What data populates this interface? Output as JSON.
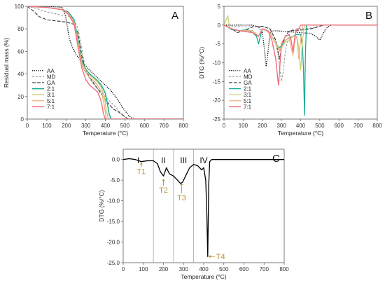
{
  "chart_data": [
    {
      "type": "line",
      "panel_label": "A",
      "xlabel": "Temperature (°C)",
      "ylabel": "Residual mass (%)",
      "xlim": [
        0,
        800
      ],
      "ylim": [
        0,
        100
      ],
      "xticks": [
        "0",
        "100",
        "200",
        "300",
        "400",
        "500",
        "600",
        "700",
        "800"
      ],
      "yticks": [
        "0",
        "20",
        "40",
        "60",
        "80",
        "100"
      ],
      "grid": false,
      "legend_position": "bottom-left",
      "series": [
        {
          "name": "AA",
          "color": "#000000",
          "dash": "1.2,1.6",
          "width": 1.3,
          "x": [
            0,
            100,
            180,
            195,
            205,
            215,
            230,
            250,
            280,
            310,
            340,
            370,
            400,
            430,
            460,
            490,
            520,
            540,
            560,
            800
          ],
          "y": [
            100,
            100,
            99,
            92,
            82,
            72,
            64,
            57,
            51,
            45,
            40,
            35,
            30,
            25,
            18,
            10,
            3,
            0.5,
            0,
            0
          ]
        },
        {
          "name": "MD",
          "color": "#9a9a9a",
          "dash": "3,2",
          "width": 1.1,
          "x": [
            0,
            50,
            100,
            180,
            220,
            240,
            260,
            280,
            300,
            330,
            360,
            400,
            440,
            470,
            500,
            520,
            800
          ],
          "y": [
            100,
            98,
            95,
            92,
            91,
            88,
            80,
            62,
            42,
            33,
            27,
            20,
            13,
            7,
            2,
            0,
            0
          ]
        },
        {
          "name": "GA",
          "color": "#3a3a3a",
          "dash": "5,2",
          "width": 1.1,
          "x": [
            0,
            30,
            60,
            100,
            150,
            200,
            240,
            260,
            280,
            300,
            320,
            340,
            360,
            380,
            400,
            420,
            440,
            470,
            500,
            520,
            800
          ],
          "y": [
            100,
            96,
            91,
            88,
            87,
            86,
            84,
            76,
            56,
            43,
            37,
            32,
            27,
            22,
            17,
            13,
            9,
            6,
            2,
            0,
            0
          ]
        },
        {
          "name": "2:1",
          "color": "#1aaa94",
          "dash": "",
          "width": 1.5,
          "x": [
            0,
            100,
            180,
            210,
            240,
            260,
            280,
            300,
            320,
            340,
            360,
            380,
            400,
            410,
            420,
            430,
            800
          ],
          "y": [
            100,
            99,
            97,
            95,
            88,
            70,
            52,
            44,
            40,
            37,
            34,
            30,
            23,
            14,
            4,
            0,
            0
          ]
        },
        {
          "name": "3:1",
          "color": "#c4cc6a",
          "dash": "",
          "width": 1.3,
          "x": [
            0,
            100,
            180,
            210,
            240,
            260,
            280,
            300,
            320,
            340,
            360,
            380,
            395,
            405,
            415,
            800
          ],
          "y": [
            100,
            99,
            97,
            94,
            86,
            68,
            50,
            43,
            39,
            36,
            33,
            28,
            20,
            8,
            0,
            0
          ]
        },
        {
          "name": "5:1",
          "color": "#f0b080",
          "dash": "",
          "width": 1.3,
          "x": [
            0,
            100,
            180,
            210,
            240,
            260,
            280,
            300,
            320,
            340,
            360,
            380,
            395,
            405,
            800
          ],
          "y": [
            100,
            99,
            97,
            94,
            85,
            66,
            48,
            41,
            37,
            34,
            30,
            24,
            12,
            0,
            0
          ]
        },
        {
          "name": "7:1",
          "color": "#ee6f7c",
          "dash": "",
          "width": 1.4,
          "x": [
            0,
            100,
            180,
            210,
            240,
            260,
            280,
            300,
            320,
            340,
            360,
            370,
            380,
            390,
            400,
            800
          ],
          "y": [
            100,
            99,
            97,
            93,
            84,
            64,
            45,
            35,
            30,
            27,
            24,
            20,
            15,
            5,
            0,
            0
          ]
        }
      ]
    },
    {
      "type": "line",
      "panel_label": "B",
      "xlabel": "Temperature (°C)",
      "ylabel": "DTG (%/°C)",
      "xlim": [
        0,
        800
      ],
      "ylim": [
        -25,
        5
      ],
      "xticks": [
        "0",
        "100",
        "200",
        "300",
        "400",
        "500",
        "600",
        "700",
        "800"
      ],
      "yticks": [
        "-25",
        "-20",
        "-15",
        "-10",
        "-5",
        "0",
        "5"
      ],
      "grid": false,
      "legend_position": "bottom-left",
      "series": [
        {
          "name": "AA",
          "color": "#000000",
          "dash": "1.2,1.6",
          "width": 1.3,
          "x": [
            0,
            150,
            180,
            200,
            210,
            220,
            230,
            240,
            260,
            300,
            350,
            400,
            450,
            480,
            500,
            520,
            540,
            560,
            800
          ],
          "y": [
            0,
            0,
            -0.5,
            -2,
            -6,
            -11,
            -7,
            -2,
            -1.5,
            -1.6,
            -1.8,
            -2,
            -2.2,
            -3,
            -4,
            -2,
            -0.5,
            0,
            0
          ]
        },
        {
          "name": "MD",
          "color": "#9a9a9a",
          "dash": "3,2",
          "width": 1.1,
          "x": [
            0,
            50,
            100,
            200,
            240,
            260,
            280,
            290,
            300,
            310,
            320,
            340,
            360,
            400,
            450,
            500,
            520,
            800
          ],
          "y": [
            0,
            -0.3,
            -0.5,
            -0.3,
            -1,
            -3,
            -7,
            -11,
            -15,
            -12,
            -7,
            -2,
            -1.2,
            -1,
            -0.8,
            -0.3,
            0,
            0
          ]
        },
        {
          "name": "GA",
          "color": "#3a3a3a",
          "dash": "5,2",
          "width": 1.1,
          "x": [
            0,
            40,
            70,
            100,
            150,
            200,
            240,
            270,
            290,
            300,
            320,
            340,
            380,
            430,
            470,
            500,
            520,
            800
          ],
          "y": [
            0,
            -1,
            -2,
            -1.5,
            -0.5,
            -0.3,
            -1,
            -4,
            -9,
            -6,
            -3,
            -1.5,
            -1.4,
            -1.2,
            -0.8,
            -0.3,
            0,
            0
          ]
        },
        {
          "name": "2:1",
          "color": "#1aaa94",
          "dash": "",
          "width": 1.3,
          "x": [
            0,
            20,
            40,
            80,
            120,
            150,
            170,
            180,
            190,
            200,
            240,
            260,
            280,
            290,
            300,
            320,
            340,
            360,
            380,
            400,
            410,
            415,
            420,
            425,
            430,
            800
          ],
          "y": [
            0,
            -0.5,
            -1.2,
            -1.5,
            -1.2,
            -2,
            -3,
            -5,
            -3,
            -1,
            -2,
            -4,
            -5.5,
            -6,
            -5.5,
            -4,
            -3.5,
            -3,
            -2.5,
            -2.5,
            -6,
            -12,
            -24,
            -8,
            0,
            0
          ]
        },
        {
          "name": "3:1",
          "color": "#c4cc6a",
          "dash": "",
          "width": 1.2,
          "x": [
            0,
            20,
            30,
            40,
            80,
            150,
            180,
            200,
            240,
            260,
            280,
            290,
            300,
            320,
            340,
            360,
            380,
            390,
            400,
            410,
            420,
            800
          ],
          "y": [
            0,
            2.5,
            -1,
            -1,
            -1.5,
            -1.5,
            -3,
            -1,
            -2,
            -4,
            -5.5,
            -6.5,
            -6,
            -4.5,
            -4,
            -3,
            -3,
            -6,
            -12,
            -4,
            0,
            0
          ]
        },
        {
          "name": "5:1",
          "color": "#f0b080",
          "dash": "",
          "width": 1.2,
          "x": [
            0,
            40,
            80,
            150,
            180,
            200,
            240,
            260,
            280,
            290,
            300,
            320,
            340,
            350,
            360,
            370,
            380,
            390,
            400,
            410,
            800
          ],
          "y": [
            0,
            -1,
            -1.5,
            -1.5,
            -3,
            -1,
            -2,
            -4,
            -6,
            -7,
            -6,
            -4,
            -3.5,
            -6,
            -8,
            -4,
            -3,
            -9,
            -4,
            0,
            0
          ]
        },
        {
          "name": "7:1",
          "color": "#ee6f7c",
          "dash": "",
          "width": 1.4,
          "x": [
            0,
            40,
            80,
            150,
            180,
            200,
            230,
            250,
            270,
            280,
            285,
            290,
            300,
            320,
            340,
            350,
            360,
            370,
            380,
            390,
            400,
            800
          ],
          "y": [
            0,
            -1,
            -1.5,
            -2,
            -3,
            -1,
            -1.5,
            -4,
            -9,
            -14,
            -16,
            -12,
            -5,
            -3,
            -2.5,
            -4,
            -7,
            -3,
            -1,
            -1,
            0,
            0
          ]
        }
      ]
    },
    {
      "type": "line",
      "panel_label": "C",
      "xlabel": "Temperature (°C)",
      "ylabel": "DTG (%/°C)",
      "xlim": [
        0,
        800
      ],
      "ylim": [
        -25,
        2.5
      ],
      "xticks": [
        "0",
        "100",
        "200",
        "300",
        "400",
        "500",
        "600",
        "700",
        "800"
      ],
      "yticks": [
        "-25.0",
        "-20.0",
        "-15.0",
        "-10.0",
        "-5.0",
        "0.0"
      ],
      "grid": false,
      "stage_boundaries": [
        150,
        250,
        350
      ],
      "stages": [
        "I",
        "II",
        "III",
        "IV"
      ],
      "annotations": [
        {
          "text": "T1",
          "x": 90,
          "y": -0.5
        },
        {
          "text": "T2",
          "x": 200,
          "y": -4.5
        },
        {
          "text": "T3",
          "x": 290,
          "y": -5.5
        },
        {
          "text": "T4",
          "x": 420,
          "y": -23.5
        }
      ],
      "annotation_color": "#b8913a",
      "series": [
        {
          "name": "",
          "color": "#000000",
          "dash": "",
          "width": 1.3,
          "x": [
            0,
            30,
            60,
            90,
            120,
            150,
            170,
            185,
            200,
            215,
            230,
            250,
            270,
            285,
            295,
            310,
            330,
            350,
            370,
            390,
            400,
            410,
            415,
            420,
            425,
            430,
            440,
            460,
            800
          ],
          "y": [
            0,
            0.2,
            0,
            -0.5,
            -0.3,
            -0.3,
            -1,
            -3,
            -4,
            -2,
            -3.5,
            -4,
            -5,
            -5.8,
            -5.5,
            -4,
            -2,
            -1.2,
            -1.5,
            -2.5,
            -2,
            -5,
            -12,
            -23.5,
            -6,
            -0.5,
            0,
            0,
            0
          ]
        }
      ]
    }
  ]
}
